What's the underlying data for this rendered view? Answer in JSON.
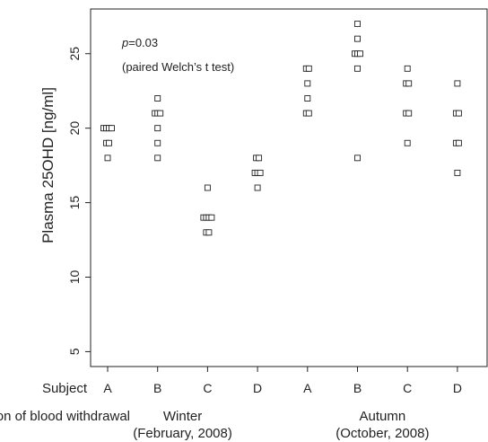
{
  "chart_data": {
    "type": "scatter",
    "ylabel": "Plasma 25OHD [ng/ml]",
    "ylim": [
      4,
      28
    ],
    "yticks": [
      "5",
      "10",
      "15",
      "20",
      "25"
    ],
    "annotation": {
      "p_italic": "p",
      "p_value": "=0.03",
      "test": "(paired Welch’s t test)"
    },
    "row_labels": {
      "subject": "Subject",
      "withdrawal": "Season of blood withdrawal"
    },
    "categories": [
      "A",
      "B",
      "C",
      "D",
      "A",
      "B",
      "C",
      "D"
    ],
    "seasons": [
      {
        "name": "Winter",
        "period": "(February, 2008)"
      },
      {
        "name": "Autumn",
        "period": "(October, 2008)"
      }
    ],
    "series": [
      {
        "subject": "A",
        "season": "Winter",
        "values": [
          20,
          20,
          20,
          20,
          19,
          19,
          18
        ]
      },
      {
        "subject": "B",
        "season": "Winter",
        "values": [
          22,
          21,
          21,
          21,
          20,
          19,
          18
        ]
      },
      {
        "subject": "C",
        "season": "Winter",
        "values": [
          16,
          14,
          14,
          14,
          14,
          13,
          13
        ]
      },
      {
        "subject": "D",
        "season": "Winter",
        "values": [
          18,
          18,
          17,
          17,
          17,
          16
        ]
      },
      {
        "subject": "A",
        "season": "Autumn",
        "values": [
          24,
          24,
          23,
          22,
          21,
          21
        ]
      },
      {
        "subject": "B",
        "season": "Autumn",
        "values": [
          27,
          26,
          25,
          25,
          25,
          24,
          18
        ]
      },
      {
        "subject": "C",
        "season": "Autumn",
        "values": [
          24,
          23,
          23,
          21,
          21,
          19
        ]
      },
      {
        "subject": "D",
        "season": "Autumn",
        "values": [
          23,
          21,
          21,
          19,
          19,
          17
        ]
      }
    ],
    "grid": false,
    "legend": "none"
  }
}
